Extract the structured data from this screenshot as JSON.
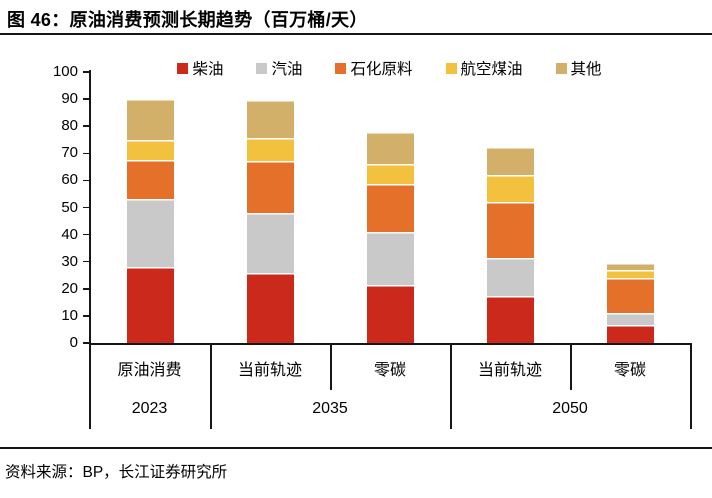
{
  "figure": {
    "title": "图 46：原油消费预测长期趋势（百万桶/天）",
    "source": "资料来源：BP，长江证券研究所"
  },
  "chart_data": {
    "type": "bar",
    "stacked": true,
    "title": "原油消费预测长期趋势",
    "unit": "百万桶/天",
    "categories": [
      "原油消费",
      "当前轨迹",
      "零碳",
      "当前轨迹",
      "零碳"
    ],
    "group_labels": [
      {
        "label": "2023",
        "span": [
          0,
          0
        ]
      },
      {
        "label": "2035",
        "span": [
          1,
          2
        ]
      },
      {
        "label": "2050",
        "span": [
          3,
          4
        ]
      }
    ],
    "series": [
      {
        "name": "柴油",
        "color": "#cb291c",
        "values": [
          28,
          26,
          21.5,
          17.5,
          6.5
        ]
      },
      {
        "name": "汽油",
        "color": "#c9c9c9",
        "values": [
          25,
          22,
          19.5,
          14,
          4.5
        ]
      },
      {
        "name": "石化原料",
        "color": "#e4702a",
        "values": [
          14.5,
          19,
          17.5,
          20.5,
          13
        ]
      },
      {
        "name": "航空煤油",
        "color": "#f2c23e",
        "values": [
          7.5,
          8.5,
          7.5,
          10,
          3
        ]
      },
      {
        "name": "其他",
        "color": "#d2b069",
        "values": [
          15,
          14,
          12,
          10.5,
          2.5
        ]
      }
    ],
    "totals": [
      90,
      89.5,
      78,
      72.5,
      29.5
    ],
    "ylim": [
      0,
      100
    ],
    "ytick_step": 10,
    "legend_position": "top",
    "grid": false,
    "axis_color": "#161616"
  }
}
